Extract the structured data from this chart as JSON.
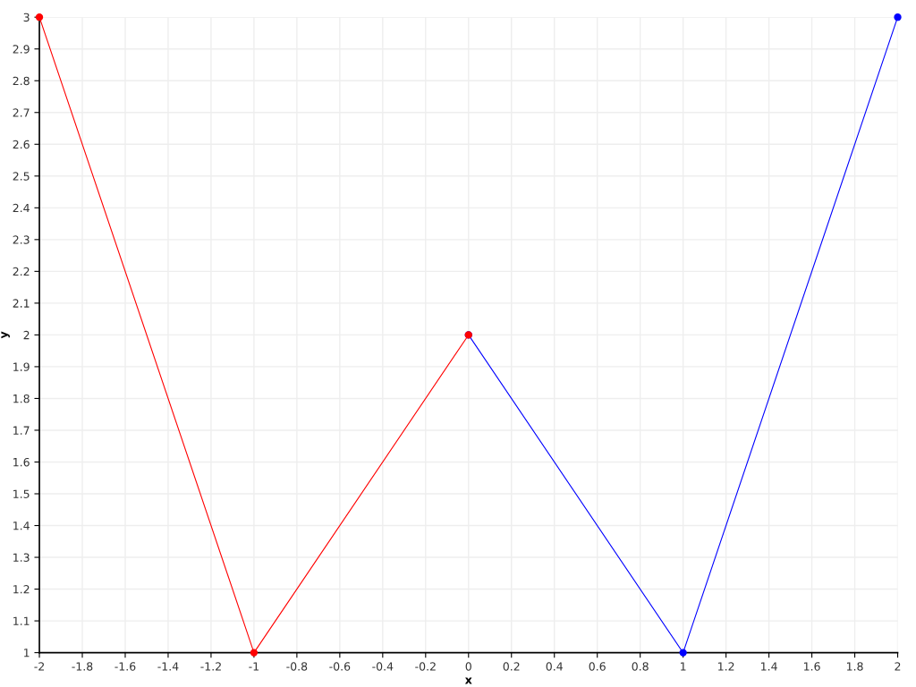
{
  "chart_data": {
    "type": "line",
    "xlabel": "x",
    "ylabel": "y",
    "series": [
      {
        "color": "#ff0000",
        "x": [
          -2,
          -1,
          0
        ],
        "values": [
          3,
          1,
          2
        ]
      },
      {
        "color": "#0000ff",
        "x": [
          0,
          1,
          2
        ],
        "values": [
          2,
          1,
          3
        ]
      }
    ],
    "xlim": [
      -2,
      2
    ],
    "xticks": [
      -2,
      -1.8,
      -1.6,
      -1.4,
      -1.2,
      -1,
      -0.8,
      -0.6,
      -0.4,
      -0.2,
      0,
      0.2,
      0.4,
      0.6,
      0.8,
      1,
      1.2,
      1.4,
      1.6,
      1.8,
      2
    ],
    "ylim": [
      1,
      3
    ],
    "yticks": [
      1,
      1.1,
      1.2,
      1.3,
      1.4,
      1.5,
      1.6,
      1.7,
      1.8,
      1.9,
      2,
      2.1,
      2.2,
      2.3,
      2.4,
      2.5,
      2.6,
      2.7,
      2.8,
      2.9,
      3
    ],
    "grid": true,
    "marker": "circle",
    "line_style": "solid"
  }
}
